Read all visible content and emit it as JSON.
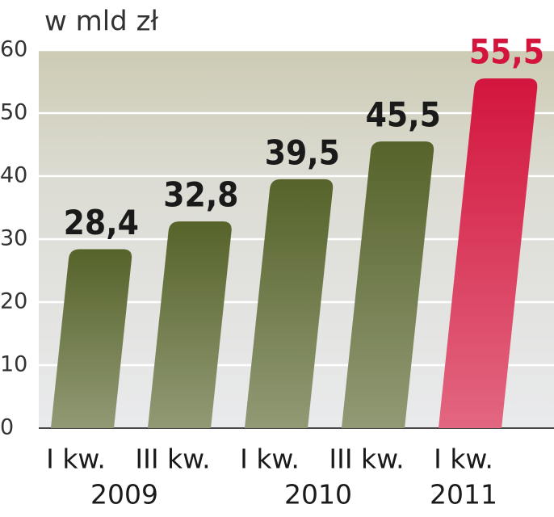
{
  "chart_data": {
    "type": "bar",
    "title": "w mld zł",
    "categories": [
      "I kw.",
      "III kw.",
      "I kw.",
      "III kw.",
      "I kw."
    ],
    "group_labels": [
      "2009",
      null,
      "2010",
      null,
      "2011"
    ],
    "values": [
      28.4,
      32.8,
      39.5,
      45.5,
      55.5
    ],
    "value_labels": [
      "28,4",
      "32,8",
      "39,5",
      "45,5",
      "55,5"
    ],
    "colors": [
      "#56632a",
      "#56632a",
      "#56632a",
      "#56632a",
      "#d3153d"
    ],
    "ylim": [
      0,
      60
    ],
    "yticks": [
      0,
      10,
      20,
      30,
      40,
      50,
      60
    ],
    "grid": true
  }
}
